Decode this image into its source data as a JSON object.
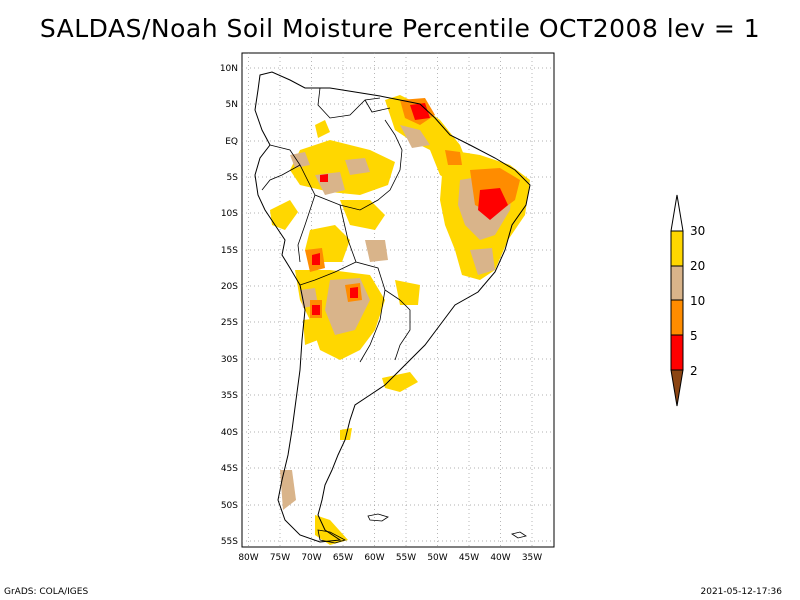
{
  "title": "SALDAS/Noah Soil Moisture Percentile OCT2008 lev = 1",
  "footer": {
    "left": "GrADS: COLA/IGES",
    "right": "2021-05-12-17:36"
  },
  "map": {
    "lon_range": [
      -80,
      -33
    ],
    "lat_range": [
      -56,
      12
    ],
    "lon_ticks": [
      "80W",
      "75W",
      "70W",
      "65W",
      "60W",
      "55W",
      "50W",
      "45W",
      "40W",
      "35W"
    ],
    "lat_ticks": [
      "10N",
      "5N",
      "EQ",
      "5S",
      "10S",
      "15S",
      "20S",
      "25S",
      "30S",
      "35S",
      "40S",
      "45S",
      "50S",
      "55S"
    ],
    "grid": true
  },
  "legend": {
    "labels": [
      "30",
      "20",
      "10",
      "5",
      "2"
    ],
    "colors": [
      "#ffffff",
      "#ffd700",
      "#d9b48a",
      "#ff8c00",
      "#ff0000",
      "#8b4513"
    ]
  }
}
